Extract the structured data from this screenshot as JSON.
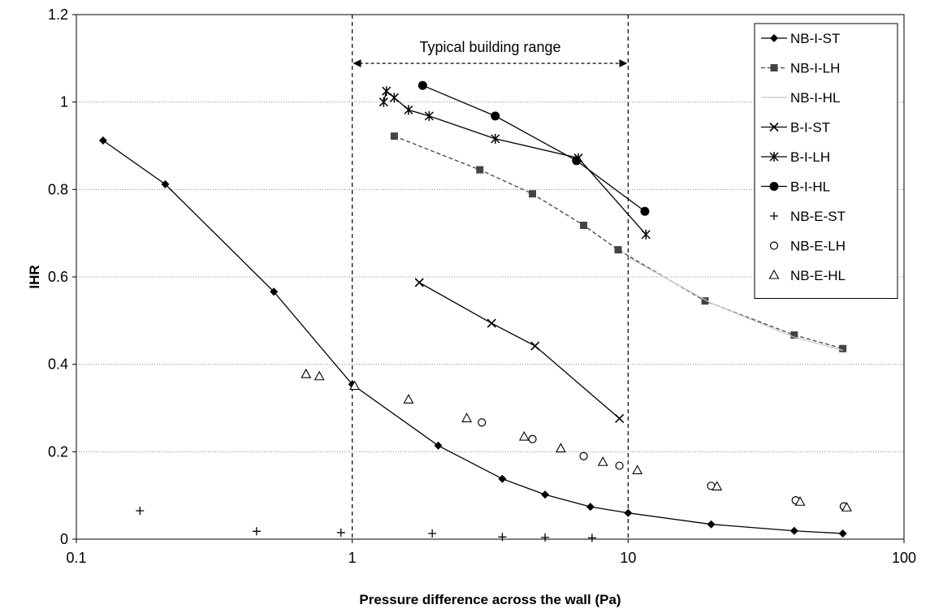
{
  "chart_data": {
    "type": "scatter",
    "title": "",
    "xlabel": "Pressure difference across the wall (Pa)",
    "ylabel": "IHR",
    "xscale": "log",
    "xlim": [
      0.1,
      100
    ],
    "ylim": [
      0,
      1.2
    ],
    "x_ticks": [
      "0.1",
      "1",
      "10",
      "100"
    ],
    "y_ticks": [
      "0",
      "0.2",
      "0.4",
      "0.6",
      "0.8",
      "1",
      "1.2"
    ],
    "grid": "horizontal dotted",
    "legend_position": "top-right",
    "annotation": {
      "text": "Typical building range",
      "x_from": 1,
      "x_to": 10
    },
    "series": [
      {
        "name": "NB-I-ST",
        "marker": "diamond",
        "line": "solid",
        "color": "#000000",
        "x": [
          0.125,
          0.21,
          0.52,
          1.0,
          2.05,
          3.5,
          5.0,
          7.3,
          10.0,
          20.0,
          40.0,
          60.0
        ],
        "y": [
          0.912,
          0.812,
          0.566,
          0.354,
          0.214,
          0.138,
          0.102,
          0.074,
          0.06,
          0.034,
          0.019,
          0.013
        ]
      },
      {
        "name": "NB-I-LH",
        "marker": "square",
        "line": "dashed",
        "color": "#444444",
        "x": [
          1.42,
          2.9,
          4.5,
          6.9,
          9.2,
          19.0,
          40.0,
          60.0
        ],
        "y": [
          0.922,
          0.845,
          0.79,
          0.718,
          0.662,
          0.545,
          0.467,
          0.436
        ]
      },
      {
        "name": "NB-I-HL",
        "marker": "none",
        "line": "solid",
        "color": "#c8c8c8",
        "x": [
          10.0,
          20.0,
          40.0,
          60.0
        ],
        "y": [
          0.645,
          0.54,
          0.462,
          0.432
        ]
      },
      {
        "name": "B-I-ST",
        "marker": "x",
        "line": "solid",
        "color": "#000000",
        "x": [
          1.75,
          3.2,
          4.6,
          9.3
        ],
        "y": [
          0.587,
          0.494,
          0.442,
          0.276
        ]
      },
      {
        "name": "B-I-LH",
        "marker": "asterisk",
        "line": "solid",
        "color": "#000000",
        "x": [
          1.3,
          1.33,
          1.42,
          1.6,
          1.9,
          3.3,
          6.6,
          11.6
        ],
        "y": [
          1.0,
          1.025,
          1.01,
          0.982,
          0.968,
          0.916,
          0.872,
          0.697
        ]
      },
      {
        "name": "B-I-HL",
        "marker": "circle-filled",
        "line": "solid",
        "color": "#000000",
        "x": [
          1.8,
          3.3,
          6.5,
          11.5
        ],
        "y": [
          1.038,
          0.968,
          0.866,
          0.75
        ]
      },
      {
        "name": "NB-E-ST",
        "marker": "plus",
        "line": "none",
        "color": "#000000",
        "x": [
          0.17,
          0.45,
          0.91,
          1.95,
          3.5,
          5.0,
          7.4
        ],
        "y": [
          0.065,
          0.018,
          0.015,
          0.013,
          0.005,
          0.004,
          0.003
        ]
      },
      {
        "name": "NB-E-LH",
        "marker": "circle-open",
        "line": "none",
        "color": "#000000",
        "x": [
          2.95,
          4.5,
          6.9,
          9.3,
          20.0,
          40.5,
          60.5
        ],
        "y": [
          0.267,
          0.229,
          0.19,
          0.168,
          0.122,
          0.089,
          0.075
        ]
      },
      {
        "name": "NB-E-HL",
        "marker": "triangle-open",
        "line": "none",
        "color": "#000000",
        "x": [
          0.68,
          0.76,
          1.02,
          1.6,
          2.6,
          4.2,
          5.7,
          8.1,
          10.8,
          21.0,
          42.0,
          62.0
        ],
        "y": [
          0.377,
          0.372,
          0.35,
          0.319,
          0.276,
          0.234,
          0.207,
          0.176,
          0.157,
          0.12,
          0.085,
          0.072
        ]
      }
    ]
  }
}
